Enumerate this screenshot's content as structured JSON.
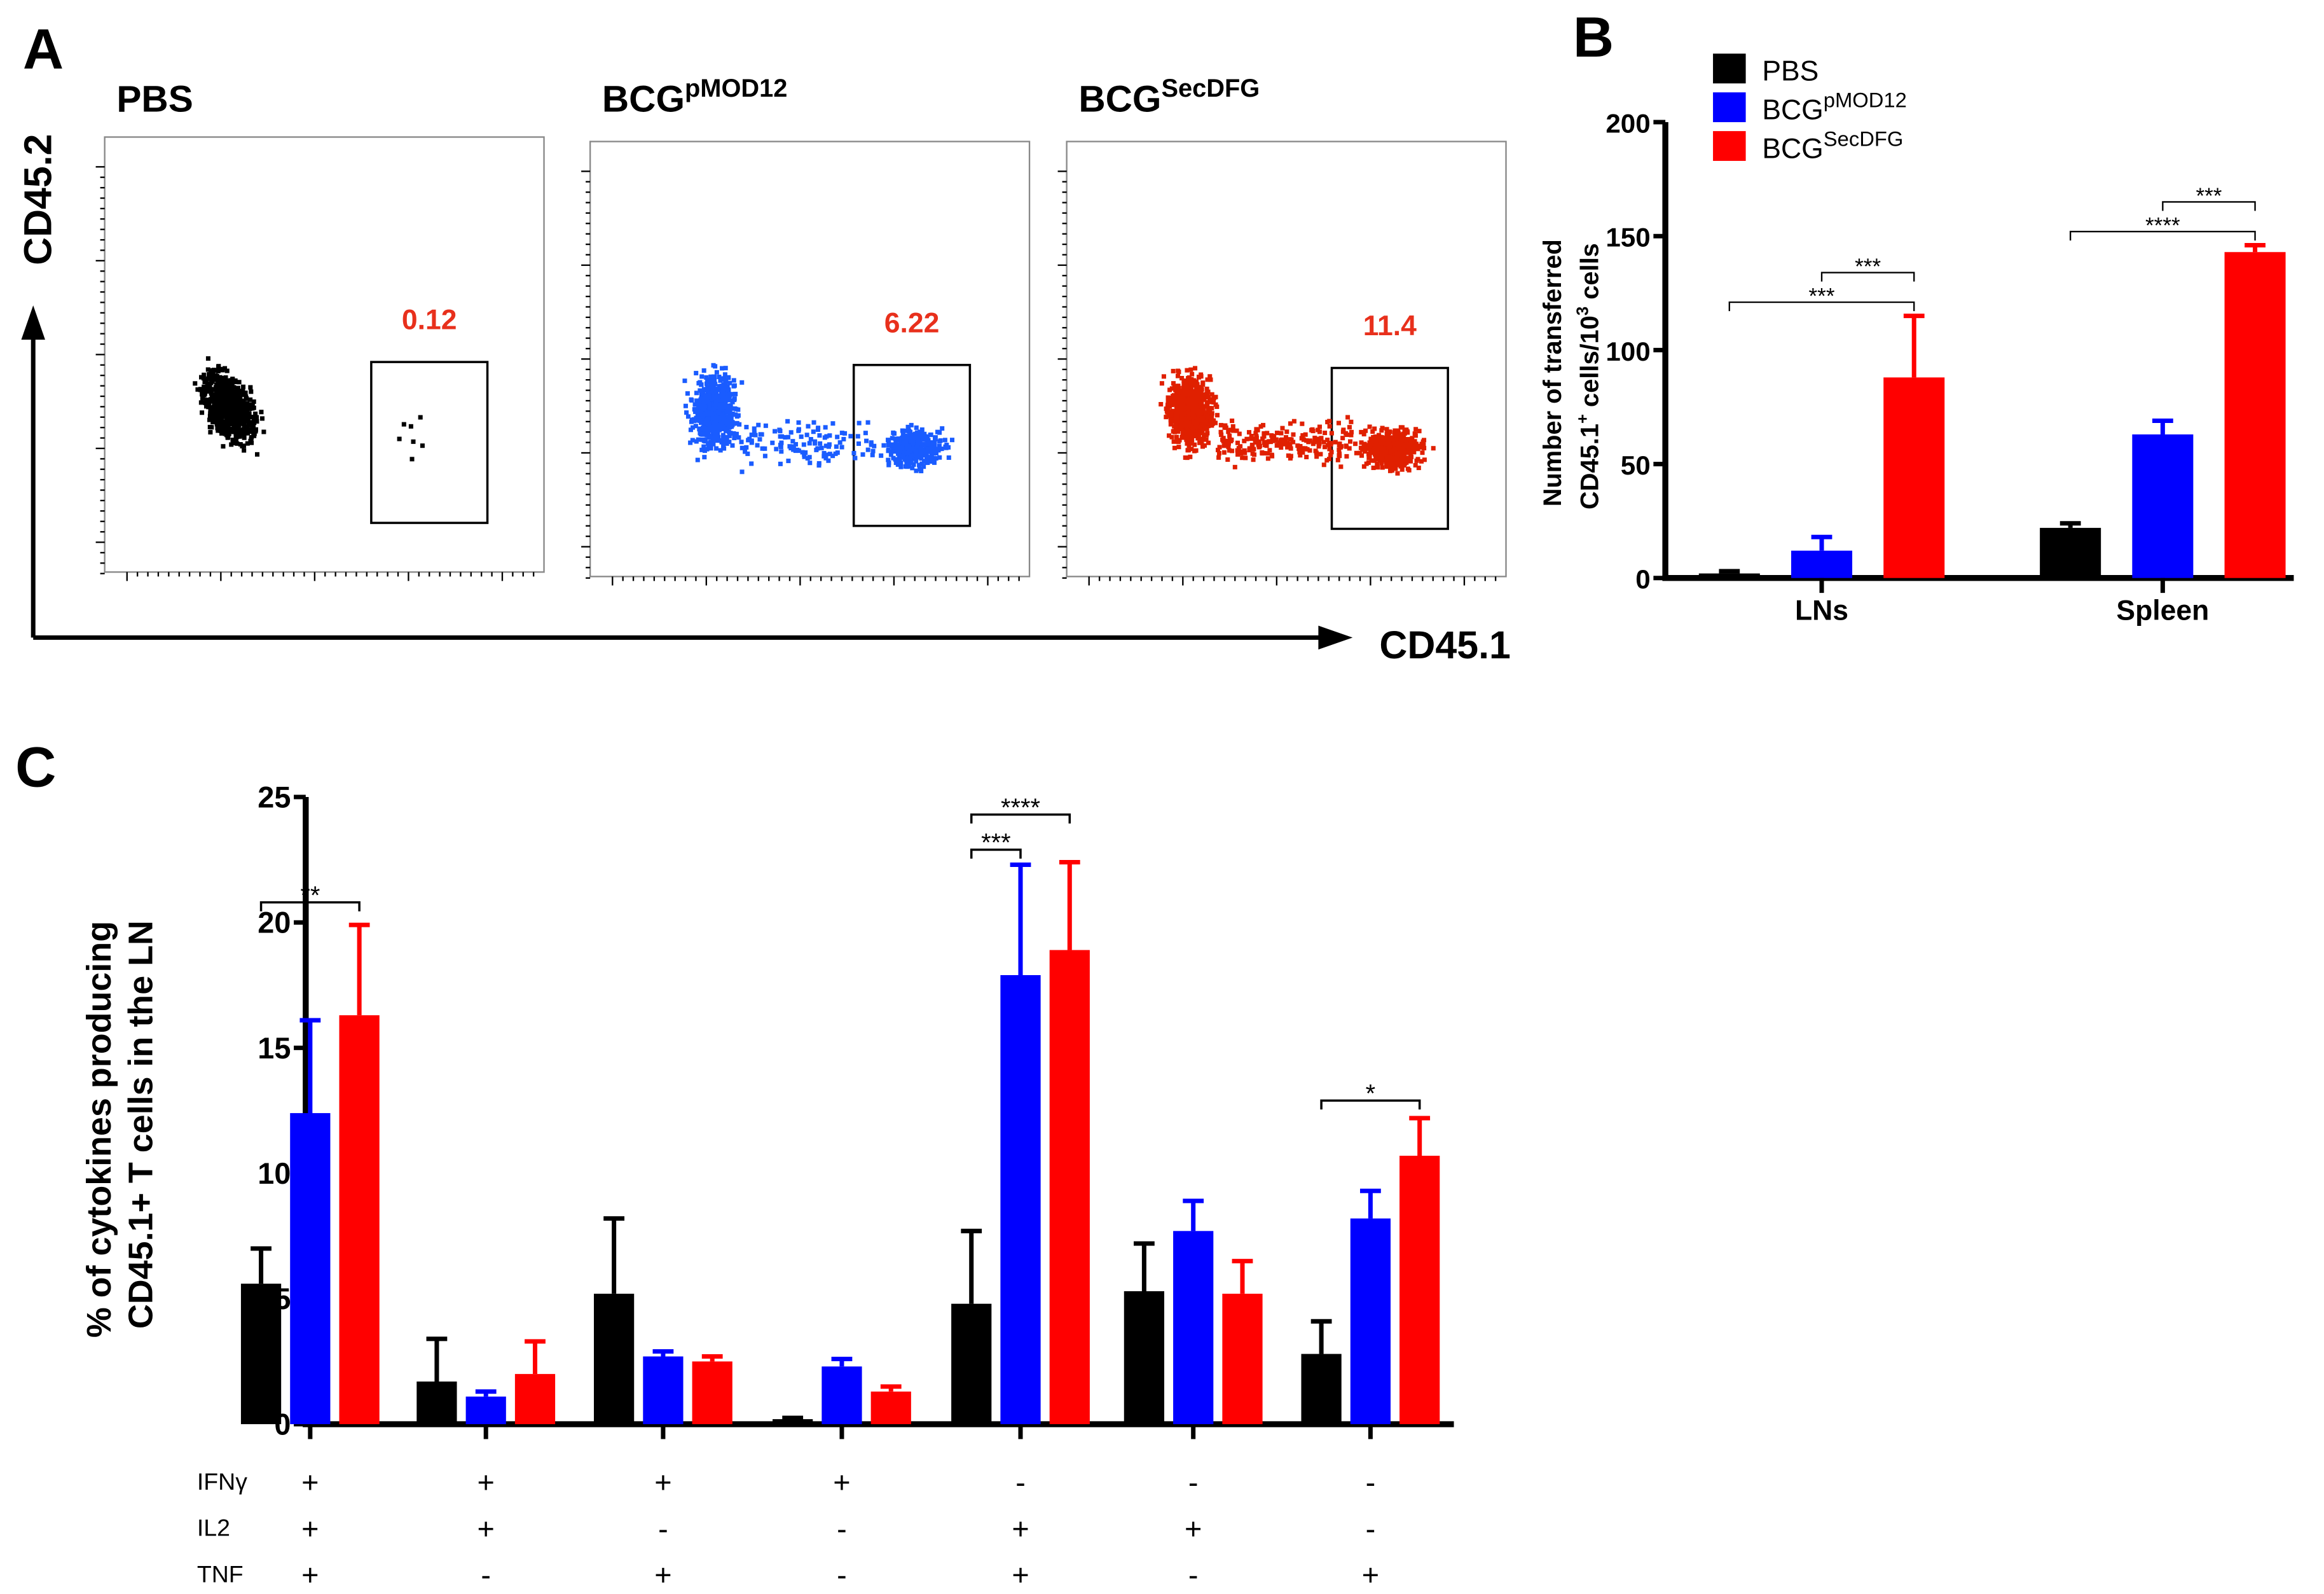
{
  "colors": {
    "PBS": "#000000",
    "BCGpMOD12": "#0000ff",
    "BCGSecDFG": "#ff0000",
    "flow_blue": "#1a5cff",
    "flow_red": "#e02000",
    "gate_value": "#e8301c"
  },
  "panel_a": {
    "label": "A",
    "y_axis_label": "CD45.2",
    "x_axis_label": "CD45.1",
    "plots": [
      {
        "title": "PBS",
        "sup": "",
        "gate_value": "0.12",
        "color": "#000000"
      },
      {
        "title": "BCG",
        "sup": "pMOD12",
        "gate_value": "6.22",
        "color": "#1a5cff"
      },
      {
        "title": "BCG",
        "sup": "SecDFG",
        "gate_value": "11.4",
        "color": "#e02000"
      }
    ]
  },
  "chart_data": [
    {
      "panel": "B",
      "type": "bar",
      "ylabel_line1": "Number of transferred",
      "ylabel_line2_pre": "CD45.1",
      "ylabel_line2_sup": "+",
      "ylabel_line2_mid": " cells/10",
      "ylabel_line2_sup2": "3",
      "ylabel_line2_post": " cells",
      "ylim": [
        0,
        200
      ],
      "yticks": [
        "0",
        "50",
        "100",
        "150",
        "200"
      ],
      "categories": [
        "LNs",
        "Spleen"
      ],
      "legend": [
        {
          "name": "PBS",
          "sup": "",
          "color": "#000000"
        },
        {
          "name": "BCG",
          "sup": "pMOD12",
          "color": "#0000ff"
        },
        {
          "name": "BCG",
          "sup": "SecDFG",
          "color": "#ff0000"
        }
      ],
      "series": [
        {
          "name": "PBS",
          "values": [
            2,
            22
          ],
          "error_top": [
            3,
            24
          ]
        },
        {
          "name": "BCGpMOD12",
          "values": [
            12,
            63
          ],
          "error_top": [
            18,
            69
          ]
        },
        {
          "name": "BCGSecDFG",
          "values": [
            88,
            143
          ],
          "error_top": [
            115,
            146
          ]
        }
      ],
      "significance": [
        {
          "category": 0,
          "from": 0,
          "to": 2,
          "y": 121,
          "label": "***"
        },
        {
          "category": 0,
          "from": 1,
          "to": 2,
          "y": 134,
          "label": "***"
        },
        {
          "category": 1,
          "from": 0,
          "to": 2,
          "y": 152,
          "label": "****"
        },
        {
          "category": 1,
          "from": 1,
          "to": 2,
          "y": 165,
          "label": "***"
        }
      ]
    },
    {
      "panel": "C",
      "type": "bar",
      "ylabel_line1": "% of cytokines producing",
      "ylabel_line2": "CD45.1+ T cells in the LN",
      "ylim": [
        0,
        25
      ],
      "yticks": [
        "0",
        "5",
        "10",
        "15",
        "20",
        "25"
      ],
      "row_labels": [
        "IFNγ",
        "IL2",
        "TNF"
      ],
      "categories": [
        [
          "+",
          "+",
          "+"
        ],
        [
          "+",
          "+",
          "-"
        ],
        [
          "+",
          "-",
          "+"
        ],
        [
          "+",
          "-",
          "-"
        ],
        [
          "-",
          "+",
          "+"
        ],
        [
          "-",
          "+",
          "-"
        ],
        [
          "-",
          "-",
          "+"
        ]
      ],
      "series": [
        {
          "name": "PBS",
          "values": [
            5.6,
            1.7,
            5.2,
            0.2,
            4.8,
            5.3,
            2.8
          ],
          "error_top": [
            7.0,
            3.4,
            8.2,
            0.25,
            7.7,
            7.2,
            4.1
          ]
        },
        {
          "name": "BCGpMOD12",
          "values": [
            12.4,
            1.1,
            2.7,
            2.3,
            17.9,
            7.7,
            8.2
          ],
          "error_top": [
            16.1,
            1.3,
            2.9,
            2.6,
            22.3,
            8.9,
            9.3
          ]
        },
        {
          "name": "BCGSecDFG",
          "values": [
            16.3,
            2.0,
            2.5,
            1.3,
            18.9,
            5.2,
            10.7
          ],
          "error_top": [
            19.9,
            3.3,
            2.7,
            1.5,
            22.4,
            6.5,
            12.2
          ]
        }
      ],
      "significance": [
        {
          "category": 0,
          "from": 0,
          "to": 2,
          "y": 20.8,
          "label": "**"
        },
        {
          "category": 4,
          "from": 0,
          "to": 1,
          "y": 22.9,
          "label": "***"
        },
        {
          "category": 4,
          "from": 0,
          "to": 2,
          "y": 24.3,
          "label": "****"
        },
        {
          "category": 6,
          "from": 0,
          "to": 2,
          "y": 12.9,
          "label": "*"
        }
      ]
    }
  ],
  "panel_labels": {
    "b": "B",
    "c": "C"
  }
}
